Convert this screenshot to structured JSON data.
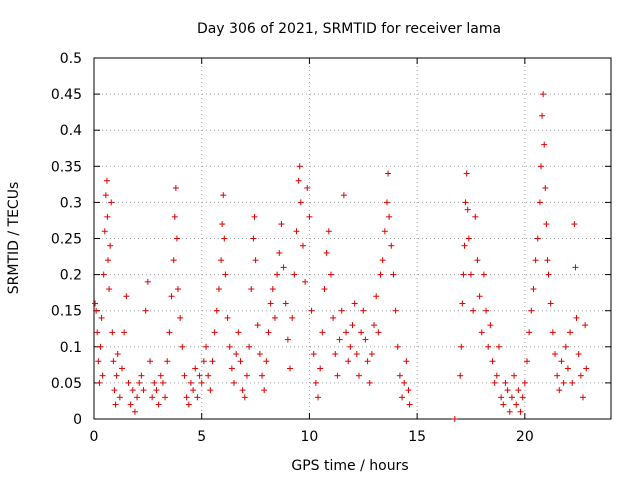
{
  "chart_data": {
    "type": "scatter",
    "title": "Day 306 of 2021, SRMTID for receiver lama",
    "xlabel": "GPS time / hours",
    "ylabel": "SRMTID / TECUs",
    "xlim": [
      0,
      24
    ],
    "ylim": [
      0,
      0.5
    ],
    "xticks": [
      0,
      5,
      10,
      15,
      20
    ],
    "yticks": [
      0,
      0.05,
      0.1,
      0.15,
      0.2,
      0.25,
      0.3,
      0.35,
      0.4,
      0.45,
      0.5
    ],
    "xtick_labels": [
      "0",
      "5",
      "10",
      "15",
      "20"
    ],
    "ytick_labels": [
      "0",
      "0.05",
      "0.1",
      "0.15",
      "0.2",
      "0.25",
      "0.3",
      "0.35",
      "0.4",
      "0.45",
      "0.5"
    ],
    "grid": true,
    "marker": "+",
    "color": "#e00000",
    "series": [
      {
        "name": "SRMTID",
        "points": [
          [
            0.05,
            0.16
          ],
          [
            0.1,
            0.15
          ],
          [
            0.15,
            0.12
          ],
          [
            0.2,
            0.08
          ],
          [
            0.25,
            0.05
          ],
          [
            0.3,
            0.1
          ],
          [
            0.35,
            0.14
          ],
          [
            0.4,
            0.06
          ],
          [
            0.45,
            0.2
          ],
          [
            0.5,
            0.26
          ],
          [
            0.55,
            0.31
          ],
          [
            0.6,
            0.33
          ],
          [
            0.62,
            0.28
          ],
          [
            0.65,
            0.22
          ],
          [
            0.7,
            0.18
          ],
          [
            0.75,
            0.24
          ],
          [
            0.8,
            0.3
          ],
          [
            0.85,
            0.12
          ],
          [
            0.9,
            0.08
          ],
          [
            0.95,
            0.04
          ],
          [
            1.0,
            0.02
          ],
          [
            1.05,
            0.06
          ],
          [
            1.1,
            0.09
          ],
          [
            1.2,
            0.03
          ],
          [
            1.3,
            0.07
          ],
          [
            1.4,
            0.12
          ],
          [
            1.5,
            0.17
          ],
          [
            1.6,
            0.05
          ],
          [
            1.7,
            0.02
          ],
          [
            1.8,
            0.04
          ],
          [
            1.9,
            0.01
          ],
          [
            2.0,
            0.03
          ],
          [
            2.1,
            0.05
          ],
          [
            2.2,
            0.06
          ],
          [
            2.3,
            0.04
          ],
          [
            2.4,
            0.15
          ],
          [
            2.5,
            0.19
          ],
          [
            2.6,
            0.08
          ],
          [
            2.7,
            0.03
          ],
          [
            2.8,
            0.05
          ],
          [
            2.9,
            0.04
          ],
          [
            3.0,
            0.02
          ],
          [
            3.1,
            0.06
          ],
          [
            3.2,
            0.05
          ],
          [
            3.3,
            0.03
          ],
          [
            3.4,
            0.08
          ],
          [
            3.5,
            0.12
          ],
          [
            3.6,
            0.17
          ],
          [
            3.7,
            0.22
          ],
          [
            3.75,
            0.28
          ],
          [
            3.8,
            0.32
          ],
          [
            3.85,
            0.25
          ],
          [
            3.9,
            0.18
          ],
          [
            4.0,
            0.14
          ],
          [
            4.1,
            0.1
          ],
          [
            4.2,
            0.06
          ],
          [
            4.3,
            0.03
          ],
          [
            4.4,
            0.02
          ],
          [
            4.5,
            0.05
          ],
          [
            4.6,
            0.04
          ],
          [
            4.7,
            0.07
          ],
          [
            4.8,
            0.03
          ],
          [
            4.9,
            0.06
          ],
          [
            5.0,
            0.05
          ],
          [
            5.1,
            0.08
          ],
          [
            5.2,
            0.1
          ],
          [
            5.3,
            0.06
          ],
          [
            5.4,
            0.04
          ],
          [
            5.5,
            0.08
          ],
          [
            5.6,
            0.12
          ],
          [
            5.7,
            0.15
          ],
          [
            5.8,
            0.18
          ],
          [
            5.9,
            0.22
          ],
          [
            5.95,
            0.27
          ],
          [
            6.0,
            0.31
          ],
          [
            6.05,
            0.25
          ],
          [
            6.1,
            0.2
          ],
          [
            6.2,
            0.14
          ],
          [
            6.3,
            0.1
          ],
          [
            6.4,
            0.07
          ],
          [
            6.5,
            0.05
          ],
          [
            6.6,
            0.09
          ],
          [
            6.7,
            0.12
          ],
          [
            6.8,
            0.08
          ],
          [
            6.9,
            0.04
          ],
          [
            7.0,
            0.03
          ],
          [
            7.1,
            0.06
          ],
          [
            7.2,
            0.1
          ],
          [
            7.3,
            0.18
          ],
          [
            7.4,
            0.25
          ],
          [
            7.45,
            0.28
          ],
          [
            7.5,
            0.22
          ],
          [
            7.6,
            0.13
          ],
          [
            7.7,
            0.09
          ],
          [
            7.8,
            0.06
          ],
          [
            7.9,
            0.04
          ],
          [
            8.0,
            0.08
          ],
          [
            8.1,
            0.12
          ],
          [
            8.2,
            0.16
          ],
          [
            8.3,
            0.18
          ],
          [
            8.4,
            0.14
          ],
          [
            8.5,
            0.2
          ],
          [
            8.6,
            0.23
          ],
          [
            8.7,
            0.27
          ],
          [
            8.8,
            0.21
          ],
          [
            8.9,
            0.16
          ],
          [
            9.0,
            0.11
          ],
          [
            9.1,
            0.07
          ],
          [
            9.2,
            0.14
          ],
          [
            9.3,
            0.2
          ],
          [
            9.4,
            0.26
          ],
          [
            9.5,
            0.33
          ],
          [
            9.55,
            0.35
          ],
          [
            9.6,
            0.3
          ],
          [
            9.7,
            0.24
          ],
          [
            9.8,
            0.19
          ],
          [
            9.9,
            0.32
          ],
          [
            10.0,
            0.28
          ],
          [
            10.1,
            0.15
          ],
          [
            10.2,
            0.09
          ],
          [
            10.3,
            0.05
          ],
          [
            10.4,
            0.03
          ],
          [
            10.5,
            0.07
          ],
          [
            10.6,
            0.12
          ],
          [
            10.7,
            0.18
          ],
          [
            10.8,
            0.23
          ],
          [
            10.9,
            0.26
          ],
          [
            11.0,
            0.2
          ],
          [
            11.1,
            0.14
          ],
          [
            11.2,
            0.09
          ],
          [
            11.3,
            0.06
          ],
          [
            11.4,
            0.11
          ],
          [
            11.5,
            0.15
          ],
          [
            11.6,
            0.31
          ],
          [
            11.7,
            0.12
          ],
          [
            11.8,
            0.08
          ],
          [
            11.9,
            0.1
          ],
          [
            12.0,
            0.13
          ],
          [
            12.1,
            0.16
          ],
          [
            12.2,
            0.09
          ],
          [
            12.3,
            0.06
          ],
          [
            12.4,
            0.12
          ],
          [
            12.5,
            0.15
          ],
          [
            12.6,
            0.11
          ],
          [
            12.7,
            0.08
          ],
          [
            12.8,
            0.05
          ],
          [
            12.9,
            0.09
          ],
          [
            13.0,
            0.13
          ],
          [
            13.1,
            0.17
          ],
          [
            13.2,
            0.12
          ],
          [
            13.3,
            0.2
          ],
          [
            13.4,
            0.22
          ],
          [
            13.5,
            0.26
          ],
          [
            13.6,
            0.3
          ],
          [
            13.65,
            0.34
          ],
          [
            13.7,
            0.28
          ],
          [
            13.8,
            0.24
          ],
          [
            13.9,
            0.2
          ],
          [
            14.0,
            0.15
          ],
          [
            14.1,
            0.1
          ],
          [
            14.2,
            0.06
          ],
          [
            14.3,
            0.03
          ],
          [
            14.4,
            0.05
          ],
          [
            14.5,
            0.08
          ],
          [
            14.6,
            0.04
          ],
          [
            14.65,
            0.02
          ],
          [
            16.75,
            0.0
          ],
          [
            17.0,
            0.06
          ],
          [
            17.05,
            0.1
          ],
          [
            17.1,
            0.16
          ],
          [
            17.15,
            0.2
          ],
          [
            17.2,
            0.24
          ],
          [
            17.25,
            0.3
          ],
          [
            17.3,
            0.34
          ],
          [
            17.35,
            0.29
          ],
          [
            17.4,
            0.25
          ],
          [
            17.5,
            0.2
          ],
          [
            17.6,
            0.15
          ],
          [
            17.7,
            0.28
          ],
          [
            17.8,
            0.22
          ],
          [
            17.9,
            0.17
          ],
          [
            18.0,
            0.12
          ],
          [
            18.1,
            0.2
          ],
          [
            18.2,
            0.15
          ],
          [
            18.3,
            0.1
          ],
          [
            18.4,
            0.13
          ],
          [
            18.5,
            0.08
          ],
          [
            18.6,
            0.05
          ],
          [
            18.7,
            0.06
          ],
          [
            18.8,
            0.1
          ],
          [
            18.9,
            0.03
          ],
          [
            19.0,
            0.02
          ],
          [
            19.1,
            0.05
          ],
          [
            19.2,
            0.04
          ],
          [
            19.3,
            0.01
          ],
          [
            19.4,
            0.03
          ],
          [
            19.5,
            0.06
          ],
          [
            19.6,
            0.02
          ],
          [
            19.7,
            0.04
          ],
          [
            19.8,
            0.01
          ],
          [
            19.9,
            0.03
          ],
          [
            20.0,
            0.05
          ],
          [
            20.1,
            0.08
          ],
          [
            20.2,
            0.12
          ],
          [
            20.3,
            0.15
          ],
          [
            20.4,
            0.18
          ],
          [
            20.5,
            0.22
          ],
          [
            20.6,
            0.25
          ],
          [
            20.7,
            0.3
          ],
          [
            20.75,
            0.35
          ],
          [
            20.8,
            0.42
          ],
          [
            20.85,
            0.45
          ],
          [
            20.9,
            0.38
          ],
          [
            20.95,
            0.32
          ],
          [
            21.0,
            0.27
          ],
          [
            21.05,
            0.22
          ],
          [
            21.1,
            0.2
          ],
          [
            21.2,
            0.16
          ],
          [
            21.3,
            0.12
          ],
          [
            21.4,
            0.09
          ],
          [
            21.5,
            0.06
          ],
          [
            21.6,
            0.04
          ],
          [
            21.7,
            0.08
          ],
          [
            21.8,
            0.05
          ],
          [
            21.9,
            0.1
          ],
          [
            22.0,
            0.07
          ],
          [
            22.1,
            0.12
          ],
          [
            22.2,
            0.05
          ],
          [
            22.3,
            0.27
          ],
          [
            22.35,
            0.21
          ],
          [
            22.4,
            0.14
          ],
          [
            22.5,
            0.09
          ],
          [
            22.6,
            0.06
          ],
          [
            22.7,
            0.03
          ],
          [
            22.8,
            0.13
          ],
          [
            22.85,
            0.07
          ]
        ]
      }
    ]
  }
}
